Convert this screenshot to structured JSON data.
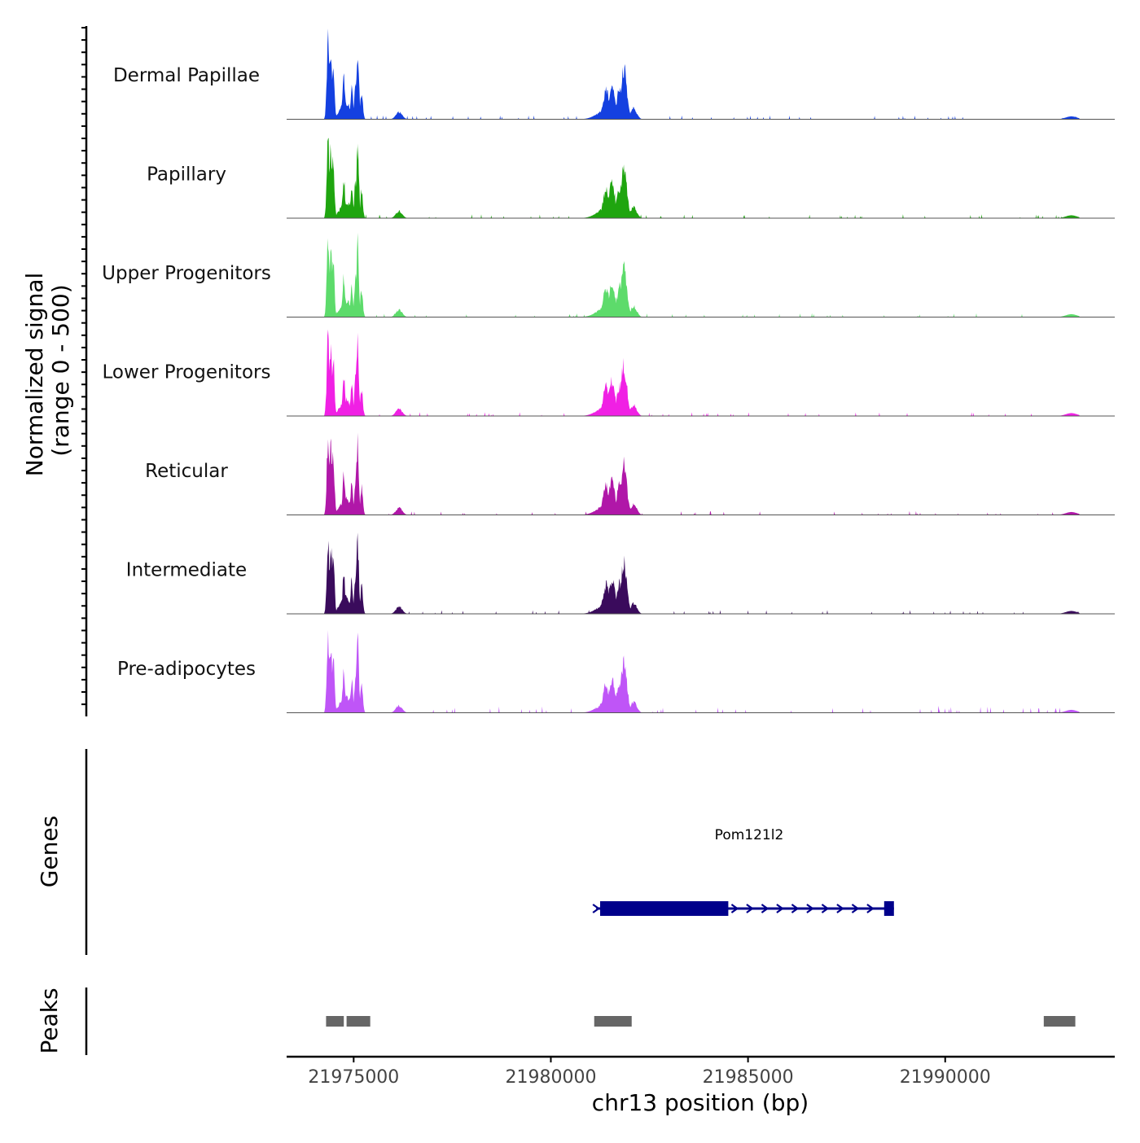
{
  "chart_data": {
    "type": "area",
    "title": "",
    "ylabel_line1": "Normalized signal",
    "ylabel_line2": "(range 0 - 500)",
    "xlabel": "chr13 position (bp)",
    "xlim": [
      21973300,
      21994300
    ],
    "ylim": [
      0,
      500
    ],
    "x_ticks": [
      21975000,
      21980000,
      21985000,
      21990000
    ],
    "x_tick_labels": [
      "21975000",
      "21980000",
      "21985000",
      "21990000"
    ],
    "tracks": [
      {
        "name": "Dermal Papillae",
        "color": "#1440E0"
      },
      {
        "name": "Papillary",
        "color": "#1FA50F"
      },
      {
        "name": "Upper Progenitors",
        "color": "#5DDB6B"
      },
      {
        "name": "Lower Progenitors",
        "color": "#F020E4"
      },
      {
        "name": "Reticular",
        "color": "#B017A8"
      },
      {
        "name": "Intermediate",
        "color": "#3A0B5C"
      },
      {
        "name": "Pre-adipocytes",
        "color": "#BF55F7"
      }
    ],
    "peak_profile": [
      {
        "x": 21974350,
        "y": 430
      },
      {
        "x": 21974420,
        "y": 380
      },
      {
        "x": 21974480,
        "y": 340
      },
      {
        "x": 21974750,
        "y": 220
      },
      {
        "x": 21974950,
        "y": 180
      },
      {
        "x": 21975050,
        "y": 210
      },
      {
        "x": 21975100,
        "y": 400
      },
      {
        "x": 21975200,
        "y": 150
      },
      {
        "x": 21976150,
        "y": 40
      },
      {
        "x": 21981400,
        "y": 160
      },
      {
        "x": 21981550,
        "y": 190
      },
      {
        "x": 21981750,
        "y": 170
      },
      {
        "x": 21981850,
        "y": 280
      },
      {
        "x": 21982100,
        "y": 60
      },
      {
        "x": 21993200,
        "y": 15
      }
    ],
    "genes_label": "Genes",
    "gene": {
      "name": "Pom121l2",
      "start": 21981150,
      "end": 21988700,
      "thick_start": 21981250,
      "thick_end": 21984500,
      "strand": "+",
      "color": "#00008B"
    },
    "peaks_label": "Peaks",
    "peaks": [
      {
        "start": 21974300,
        "end": 21974750
      },
      {
        "start": 21974820,
        "end": 21975420
      },
      {
        "start": 21981100,
        "end": 21982050
      },
      {
        "start": 21992500,
        "end": 21993300
      }
    ],
    "peak_color": "#666666"
  }
}
